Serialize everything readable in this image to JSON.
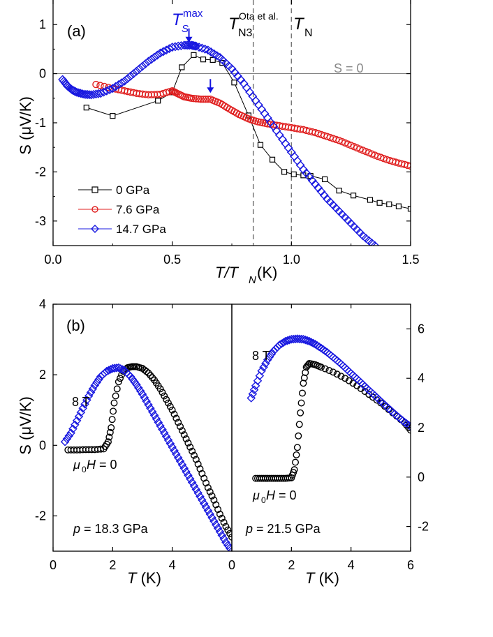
{
  "chart_data": [
    {
      "panel": "(a)",
      "type": "scatter",
      "xlabel_main": "T/T",
      "xlabel_sub": "N",
      "xlabel_unit": " (K)",
      "ylabel": "S (μV/K)",
      "xlim": [
        0,
        1.5
      ],
      "ylim": [
        -3.5,
        1.5
      ],
      "xticks": [
        "0.0",
        "0.5",
        "1.0",
        "1.5"
      ],
      "xtick_values": [
        0,
        0.5,
        1.0,
        1.5
      ],
      "yticks": [
        "-3",
        "-2",
        "-1",
        "0",
        "1"
      ],
      "ytick_values": [
        -3,
        -2,
        -1,
        0,
        1
      ],
      "reference_lines": {
        "zero_label": "S = 0",
        "tn3_x": 0.84,
        "tn3_label_main": "T",
        "tn3_label_sub": "N3",
        "tn3_label_sup": "Ota et al.",
        "tn_x": 1.0,
        "tn_label_main": "T",
        "tn_label_sub": "N"
      },
      "annotation": {
        "main": "T",
        "sub": "S",
        "sup": "max",
        "color": "#1010e0"
      },
      "arrows": [
        {
          "x": 0.57,
          "y": 0.58
        },
        {
          "x": 0.66,
          "y": -0.45
        }
      ],
      "legend_position": "lower-left",
      "series": [
        {
          "name": "0 GPa",
          "color": "#000000",
          "marker": "square",
          "x": [
            0.14,
            0.25,
            0.44,
            0.5,
            0.54,
            0.59,
            0.63,
            0.67,
            0.71,
            0.76,
            0.82,
            0.87,
            0.92,
            0.97,
            1.01,
            1.05,
            1.08,
            1.14,
            1.2,
            1.26,
            1.33,
            1.37,
            1.41,
            1.45,
            1.5
          ],
          "y": [
            -0.69,
            -0.86,
            -0.55,
            -0.38,
            0.13,
            0.38,
            0.29,
            0.28,
            0.22,
            -0.18,
            -0.85,
            -1.45,
            -1.75,
            -2.0,
            -2.05,
            -2.07,
            -2.08,
            -2.15,
            -2.38,
            -2.48,
            -2.57,
            -2.63,
            -2.66,
            -2.7,
            -2.75
          ]
        },
        {
          "name": "7.6 GPa",
          "color": "#e02020",
          "marker": "circle",
          "x": [
            0.18,
            0.25,
            0.3,
            0.35,
            0.4,
            0.45,
            0.5,
            0.52,
            0.55,
            0.58,
            0.62,
            0.66,
            0.7,
            0.74,
            0.78,
            0.82,
            0.86,
            0.9,
            0.95,
            1.0,
            1.05,
            1.1,
            1.15,
            1.2,
            1.25,
            1.3,
            1.35,
            1.4,
            1.45,
            1.5
          ],
          "y": [
            -0.22,
            -0.3,
            -0.35,
            -0.4,
            -0.43,
            -0.42,
            -0.35,
            -0.4,
            -0.47,
            -0.5,
            -0.52,
            -0.52,
            -0.6,
            -0.72,
            -0.83,
            -0.92,
            -0.98,
            -1.02,
            -1.06,
            -1.1,
            -1.14,
            -1.2,
            -1.28,
            -1.36,
            -1.46,
            -1.56,
            -1.66,
            -1.75,
            -1.82,
            -1.88
          ]
        },
        {
          "name": "14.7 GPa",
          "color": "#1818e0",
          "marker": "diamond",
          "x": [
            0.04,
            0.06,
            0.08,
            0.1,
            0.13,
            0.16,
            0.2,
            0.25,
            0.3,
            0.35,
            0.4,
            0.45,
            0.5,
            0.55,
            0.58,
            0.6,
            0.65,
            0.7,
            0.75,
            0.8,
            0.85,
            0.9,
            0.95,
            1.0,
            1.05,
            1.1,
            1.15,
            1.2,
            1.25,
            1.3,
            1.35
          ],
          "y": [
            -0.12,
            -0.25,
            -0.33,
            -0.38,
            -0.42,
            -0.43,
            -0.4,
            -0.3,
            -0.15,
            0.05,
            0.25,
            0.42,
            0.54,
            0.58,
            0.58,
            0.56,
            0.48,
            0.33,
            0.1,
            -0.2,
            -0.55,
            -0.9,
            -1.25,
            -1.6,
            -1.95,
            -2.25,
            -2.55,
            -2.8,
            -3.05,
            -3.3,
            -3.5
          ]
        }
      ]
    },
    {
      "panel": "(b)",
      "type": "scatter",
      "sub_panels": [
        {
          "side": "left",
          "xlabel": "T (K)",
          "ylabel": "S (μV/K)",
          "xlim": [
            0,
            6
          ],
          "ylim": [
            -3,
            4
          ],
          "xticks": [
            "0",
            "2",
            "4",
            "0"
          ],
          "xtick_values": [
            0,
            2,
            4,
            6
          ],
          "yticks": [
            "-2",
            "0",
            "2",
            "4"
          ],
          "ytick_values": [
            -2,
            0,
            2,
            4
          ],
          "pressure_label": "p = 18.3 GPa",
          "field_label_8T": "8 T",
          "field_label_zero": "μ0H = 0",
          "series": [
            {
              "name": "μ0H = 0",
              "color": "#000000",
              "marker": "circle",
              "x": [
                0.5,
                0.8,
                1.1,
                1.4,
                1.7,
                1.85,
                1.95,
                2.05,
                2.2,
                2.35,
                2.5,
                2.65,
                2.8,
                3.0,
                3.2,
                3.4,
                3.6,
                3.8,
                4.0,
                4.2,
                4.4,
                4.6,
                4.8,
                5.0,
                5.2,
                5.4,
                5.6,
                5.8,
                6.0
              ],
              "y": [
                -0.13,
                -0.13,
                -0.12,
                -0.12,
                -0.1,
                0.1,
                0.5,
                1.2,
                1.8,
                2.1,
                2.2,
                2.23,
                2.23,
                2.18,
                2.05,
                1.85,
                1.6,
                1.3,
                1.0,
                0.65,
                0.3,
                -0.05,
                -0.4,
                -0.8,
                -1.2,
                -1.55,
                -1.95,
                -2.3,
                -2.6
              ]
            },
            {
              "name": "8 T",
              "color": "#1818e0",
              "marker": "diamond",
              "x": [
                0.4,
                0.6,
                0.8,
                1.0,
                1.2,
                1.4,
                1.6,
                1.8,
                2.0,
                2.2,
                2.4,
                2.6,
                2.8,
                3.0,
                3.2,
                3.4,
                3.6,
                3.8,
                4.0,
                4.2,
                4.4,
                4.6,
                4.8,
                5.0,
                5.2,
                5.4,
                5.6,
                5.8,
                6.0
              ],
              "y": [
                0.1,
                0.35,
                0.7,
                1.05,
                1.4,
                1.7,
                1.95,
                2.1,
                2.18,
                2.2,
                2.12,
                1.95,
                1.72,
                1.45,
                1.15,
                0.85,
                0.55,
                0.25,
                -0.05,
                -0.35,
                -0.65,
                -0.95,
                -1.25,
                -1.55,
                -1.85,
                -2.15,
                -2.45,
                -2.75,
                -3.0
              ]
            }
          ]
        },
        {
          "side": "right",
          "xlabel": "T (K)",
          "xlim": [
            0,
            6
          ],
          "ylim": [
            -3,
            7
          ],
          "xticks": [
            "2",
            "4",
            "6"
          ],
          "xtick_values": [
            2,
            4,
            6
          ],
          "yticks": [
            "-2",
            "0",
            "2",
            "4",
            "6"
          ],
          "ytick_values": [
            -2,
            0,
            2,
            4,
            6
          ],
          "pressure_label": "p = 21.5 GPa",
          "field_label_8T": "8 T",
          "field_label_zero": "μ0H = 0",
          "series": [
            {
              "name": "μ0H = 0",
              "color": "#000000",
              "marker": "circle",
              "x": [
                0.8,
                1.0,
                1.2,
                1.4,
                1.6,
                1.8,
                2.0,
                2.1,
                2.2,
                2.3,
                2.4,
                2.5,
                2.6,
                2.8,
                3.0,
                3.4,
                3.8,
                4.2,
                4.6,
                5.0,
                5.4,
                5.8,
                6.0
              ],
              "y": [
                -0.05,
                -0.05,
                -0.05,
                -0.05,
                -0.05,
                -0.05,
                -0.03,
                0.3,
                1.2,
                2.6,
                3.8,
                4.45,
                4.6,
                4.55,
                4.45,
                4.25,
                4.0,
                3.7,
                3.35,
                3.0,
                2.6,
                2.2,
                1.9
              ]
            },
            {
              "name": "8 T",
              "color": "#1818e0",
              "marker": "diamond",
              "x": [
                0.65,
                0.8,
                1.0,
                1.2,
                1.4,
                1.6,
                1.8,
                2.0,
                2.2,
                2.4,
                2.6,
                2.8,
                3.0,
                3.2,
                3.4,
                3.6,
                3.8,
                4.0,
                4.2,
                4.4,
                4.6,
                4.8,
                5.0,
                5.2,
                5.4,
                5.6,
                5.8,
                6.0
              ],
              "y": [
                3.2,
                3.7,
                4.3,
                4.75,
                5.1,
                5.35,
                5.5,
                5.58,
                5.6,
                5.58,
                5.5,
                5.38,
                5.22,
                5.05,
                4.85,
                4.65,
                4.43,
                4.2,
                3.98,
                3.75,
                3.52,
                3.3,
                3.07,
                2.85,
                2.63,
                2.42,
                2.22,
                2.05
              ]
            }
          ]
        }
      ]
    }
  ]
}
